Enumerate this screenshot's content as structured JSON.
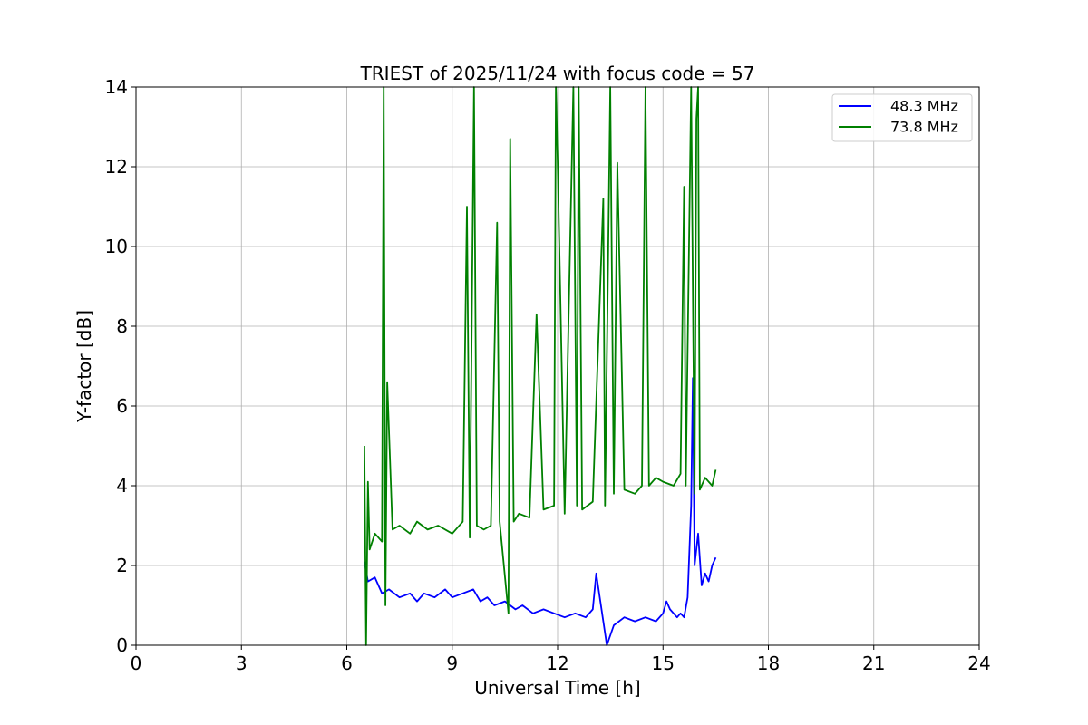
{
  "chart_data": {
    "type": "line",
    "title": "TRIEST of 2025/11/24 with focus code = 57",
    "xlabel": "Universal Time [h]",
    "ylabel": "Y-factor [dB]",
    "xlim": [
      0,
      24
    ],
    "ylim": [
      0,
      14
    ],
    "xticks": [
      0,
      3,
      6,
      9,
      12,
      15,
      18,
      21,
      24
    ],
    "yticks": [
      0,
      2,
      4,
      6,
      8,
      10,
      12,
      14
    ],
    "grid": true,
    "legend_position": "top-right",
    "series": [
      {
        "name": "48.3 MHz",
        "color": "#0000ff",
        "x": [
          6.5,
          6.6,
          6.8,
          7.0,
          7.2,
          7.5,
          7.8,
          8.0,
          8.2,
          8.5,
          8.8,
          9.0,
          9.3,
          9.6,
          9.8,
          10.0,
          10.2,
          10.5,
          10.8,
          11.0,
          11.3,
          11.6,
          11.9,
          12.2,
          12.5,
          12.8,
          13.0,
          13.1,
          13.3,
          13.4,
          13.6,
          13.9,
          14.2,
          14.5,
          14.8,
          15.0,
          15.1,
          15.2,
          15.4,
          15.5,
          15.6,
          15.7,
          15.8,
          15.85,
          15.9,
          16.0,
          16.1,
          16.2,
          16.3,
          16.4,
          16.5
        ],
        "values": [
          2.1,
          1.6,
          1.7,
          1.3,
          1.4,
          1.2,
          1.3,
          1.1,
          1.3,
          1.2,
          1.4,
          1.2,
          1.3,
          1.4,
          1.1,
          1.2,
          1.0,
          1.1,
          0.9,
          1.0,
          0.8,
          0.9,
          0.8,
          0.7,
          0.8,
          0.7,
          0.9,
          1.8,
          0.6,
          0.0,
          0.5,
          0.7,
          0.6,
          0.7,
          0.6,
          0.8,
          1.1,
          0.9,
          0.7,
          0.8,
          0.7,
          1.2,
          3.5,
          6.7,
          2.0,
          2.8,
          1.5,
          1.8,
          1.6,
          2.0,
          2.2
        ]
      },
      {
        "name": "73.8 MHz",
        "color": "#008000",
        "x": [
          6.5,
          6.55,
          6.6,
          6.65,
          6.8,
          7.0,
          7.05,
          7.1,
          7.15,
          7.3,
          7.5,
          7.8,
          8.0,
          8.3,
          8.6,
          9.0,
          9.3,
          9.42,
          9.5,
          9.62,
          9.7,
          9.9,
          10.1,
          10.28,
          10.35,
          10.6,
          10.65,
          10.75,
          10.9,
          11.2,
          11.4,
          11.6,
          11.9,
          11.95,
          12.0,
          12.2,
          12.3,
          12.45,
          12.55,
          12.6,
          12.7,
          13.0,
          13.3,
          13.35,
          13.5,
          13.6,
          13.7,
          13.9,
          14.2,
          14.4,
          14.5,
          14.6,
          14.8,
          15.0,
          15.3,
          15.5,
          15.6,
          15.65,
          15.8,
          15.9,
          15.95,
          16.0,
          16.05,
          16.2,
          16.4,
          16.5
        ],
        "values": [
          5.0,
          0.0,
          4.1,
          2.4,
          2.8,
          2.6,
          14.0,
          1.0,
          6.6,
          2.9,
          3.0,
          2.8,
          3.1,
          2.9,
          3.0,
          2.8,
          3.1,
          11.0,
          2.7,
          14.0,
          3.0,
          2.9,
          3.0,
          10.6,
          3.1,
          0.8,
          12.7,
          3.1,
          3.3,
          3.2,
          8.3,
          3.4,
          3.5,
          14.0,
          12.2,
          3.3,
          7.6,
          14.0,
          3.5,
          14.0,
          3.4,
          3.6,
          11.2,
          3.5,
          14.0,
          3.8,
          12.1,
          3.9,
          3.8,
          4.0,
          14.0,
          4.0,
          4.2,
          4.1,
          4.0,
          4.3,
          11.5,
          4.0,
          14.0,
          3.8,
          13.2,
          14.0,
          3.9,
          4.2,
          4.0,
          4.4
        ]
      }
    ]
  }
}
